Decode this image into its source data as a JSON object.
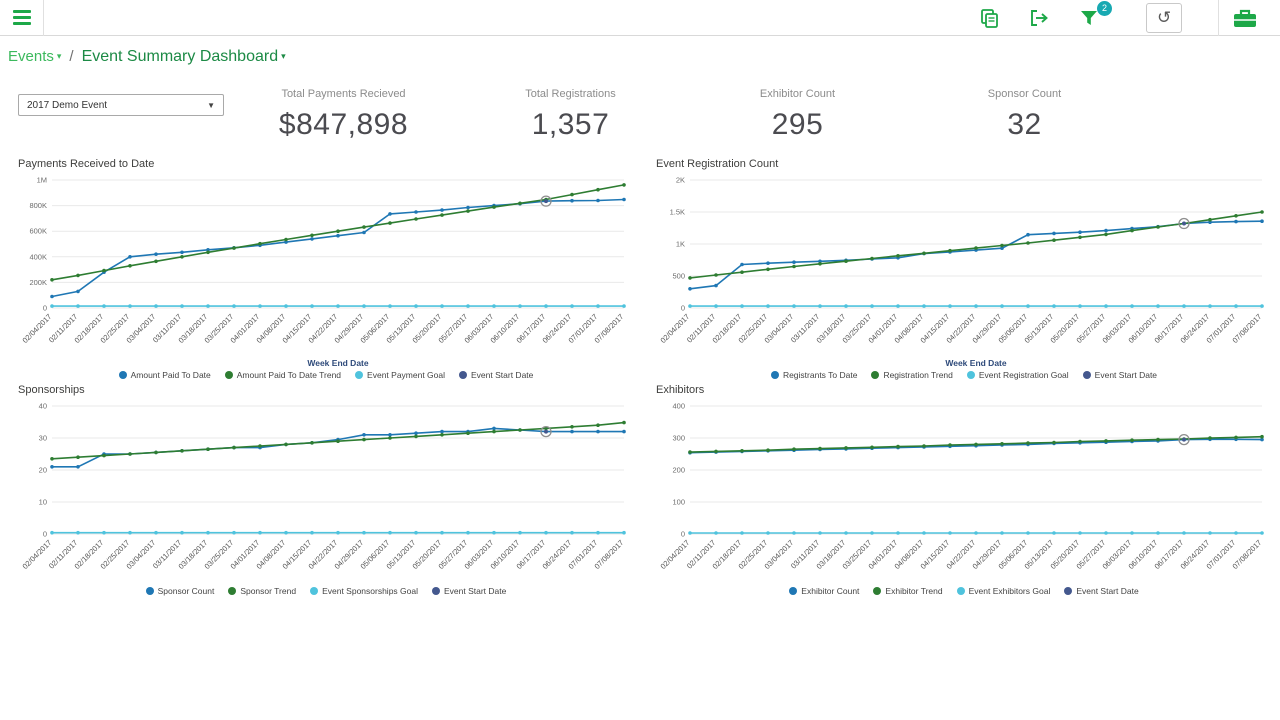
{
  "topbar": {
    "filter_badge": "2",
    "refresh_glyph": "↻",
    "icons": [
      "hamburger-menu",
      "copy-reports",
      "export",
      "filter-funnel",
      "refresh",
      "briefcase"
    ]
  },
  "breadcrumb": {
    "section": "Events",
    "separator": "/",
    "page": "Event Summary Dashboard",
    "caret": "▾"
  },
  "event_filter": {
    "selected": "2017 Demo Event",
    "caret": "▼"
  },
  "kpis": [
    {
      "label": "Total Payments Recieved",
      "value": "$847,898"
    },
    {
      "label": "Total Registrations",
      "value": "1,357"
    },
    {
      "label": "Exhibitor Count",
      "value": "295"
    },
    {
      "label": "Sponsor Count",
      "value": "32"
    }
  ],
  "colors": {
    "brand_green": "#1da848",
    "badge_teal": "#18a9b2",
    "series_blue": "#1f77b4",
    "series_green": "#2e7d32",
    "series_lightblue": "#4fc3dd",
    "series_navy": "#44588e"
  },
  "week_end_dates": [
    "02/04/2017",
    "02/11/2017",
    "02/18/2017",
    "02/25/2017",
    "03/04/2017",
    "03/11/2017",
    "03/18/2017",
    "03/25/2017",
    "04/01/2017",
    "04/08/2017",
    "04/15/2017",
    "04/22/2017",
    "04/29/2017",
    "05/06/2017",
    "05/13/2017",
    "05/20/2017",
    "05/27/2017",
    "06/03/2017",
    "06/10/2017",
    "06/17/2017",
    "06/24/2017",
    "07/01/2017",
    "07/08/2017"
  ],
  "chart_data": [
    {
      "type": "line",
      "title": "Payments Received to Date",
      "xlabel": "Week End Date",
      "ylim": [
        0,
        1000000
      ],
      "yticks": [
        [
          0,
          "0"
        ],
        [
          200000,
          "200K"
        ],
        [
          400000,
          "400K"
        ],
        [
          600000,
          "600K"
        ],
        [
          800000,
          "800K"
        ],
        [
          1000000,
          "1M"
        ]
      ],
      "series": [
        {
          "name": "Amount Paid To Date",
          "color": "#1f77b4",
          "values": [
            90000,
            130000,
            280000,
            400000,
            420000,
            435000,
            455000,
            470000,
            490000,
            515000,
            540000,
            565000,
            590000,
            735000,
            750000,
            765000,
            785000,
            800000,
            815000,
            835000,
            838000,
            840000,
            847898
          ]
        },
        {
          "name": "Amount Paid To Date Trend",
          "color": "#2e7d32",
          "values": [
            220000,
            255000,
            292000,
            330000,
            365000,
            400000,
            435000,
            468000,
            502000,
            535000,
            568000,
            600000,
            632000,
            663000,
            695000,
            726000,
            757000,
            788000,
            818000,
            848000,
            886000,
            924000,
            962000
          ]
        },
        {
          "name": "Event Payment Goal",
          "color": "#4fc3dd",
          "flat": 15000
        }
      ],
      "marker": {
        "name": "Event Start Date",
        "color": "#44588e",
        "x": "06/17/2017",
        "x_index": 19,
        "value": 835000
      }
    },
    {
      "type": "line",
      "title": "Event Registration Count",
      "xlabel": "Week End Date",
      "ylim": [
        0,
        2000
      ],
      "yticks": [
        [
          0,
          "0"
        ],
        [
          500,
          "500"
        ],
        [
          1000,
          "1K"
        ],
        [
          1500,
          "1.5K"
        ],
        [
          2000,
          "2K"
        ]
      ],
      "series": [
        {
          "name": "Registrants To Date",
          "color": "#1f77b4",
          "values": [
            300,
            350,
            680,
            700,
            715,
            730,
            745,
            765,
            785,
            850,
            875,
            905,
            935,
            1145,
            1165,
            1185,
            1210,
            1240,
            1270,
            1320,
            1340,
            1350,
            1357
          ]
        },
        {
          "name": "Registration Trend",
          "color": "#2e7d32",
          "values": [
            470,
            515,
            560,
            605,
            648,
            690,
            732,
            773,
            815,
            855,
            896,
            936,
            976,
            1016,
            1060,
            1105,
            1150,
            1210,
            1265,
            1320,
            1380,
            1440,
            1500
          ]
        },
        {
          "name": "Event Registration Goal",
          "color": "#4fc3dd",
          "flat": 30
        }
      ],
      "marker": {
        "name": "Event Start Date",
        "color": "#44588e",
        "x": "06/17/2017",
        "x_index": 19,
        "value": 1320
      }
    },
    {
      "type": "line",
      "title": "Sponsorships",
      "xlabel": "",
      "ylim": [
        0,
        40
      ],
      "yticks": [
        [
          0,
          "0"
        ],
        [
          10,
          "10"
        ],
        [
          20,
          "20"
        ],
        [
          30,
          "30"
        ],
        [
          40,
          "40"
        ]
      ],
      "series": [
        {
          "name": "Sponsor Count",
          "color": "#1f77b4",
          "values": [
            21,
            21,
            25,
            25,
            25.5,
            26,
            26.5,
            27,
            27,
            28,
            28.5,
            29.5,
            31,
            31,
            31.5,
            32,
            32,
            33,
            32.5,
            32,
            32,
            32,
            32
          ]
        },
        {
          "name": "Sponsor Trend",
          "color": "#2e7d32",
          "values": [
            23.5,
            24,
            24.5,
            25,
            25.5,
            26,
            26.5,
            27,
            27.5,
            28,
            28.5,
            29,
            29.5,
            30,
            30.5,
            31,
            31.5,
            32,
            32.5,
            33,
            33.5,
            34,
            34.8
          ]
        },
        {
          "name": "Event Sponsorships Goal",
          "color": "#4fc3dd",
          "flat": 0.4
        }
      ],
      "marker": {
        "name": "Event Start Date",
        "color": "#44588e",
        "x": "06/17/2017",
        "x_index": 19,
        "value": 32
      }
    },
    {
      "type": "line",
      "title": "Exhibitors",
      "xlabel": "",
      "ylim": [
        0,
        400
      ],
      "yticks": [
        [
          0,
          "0"
        ],
        [
          100,
          "100"
        ],
        [
          200,
          "200"
        ],
        [
          300,
          "300"
        ],
        [
          400,
          "400"
        ]
      ],
      "series": [
        {
          "name": "Exhibitor Count",
          "color": "#1f77b4",
          "values": [
            254,
            256,
            258,
            260,
            262,
            264,
            266,
            268,
            270,
            272,
            274,
            276,
            278,
            280,
            283,
            285,
            287,
            289,
            291,
            295,
            296,
            296,
            295
          ]
        },
        {
          "name": "Exhibitor Trend",
          "color": "#2e7d32",
          "values": [
            256,
            258,
            260,
            262,
            265,
            267,
            269,
            271,
            273,
            275,
            278,
            280,
            282,
            284,
            286,
            289,
            291,
            293,
            295,
            297,
            300,
            302,
            304
          ]
        },
        {
          "name": "Event Exhibitors Goal",
          "color": "#4fc3dd",
          "flat": 3
        }
      ],
      "marker": {
        "name": "Event Start Date",
        "color": "#44588e",
        "x": "06/17/2017",
        "x_index": 19,
        "value": 295
      }
    }
  ]
}
